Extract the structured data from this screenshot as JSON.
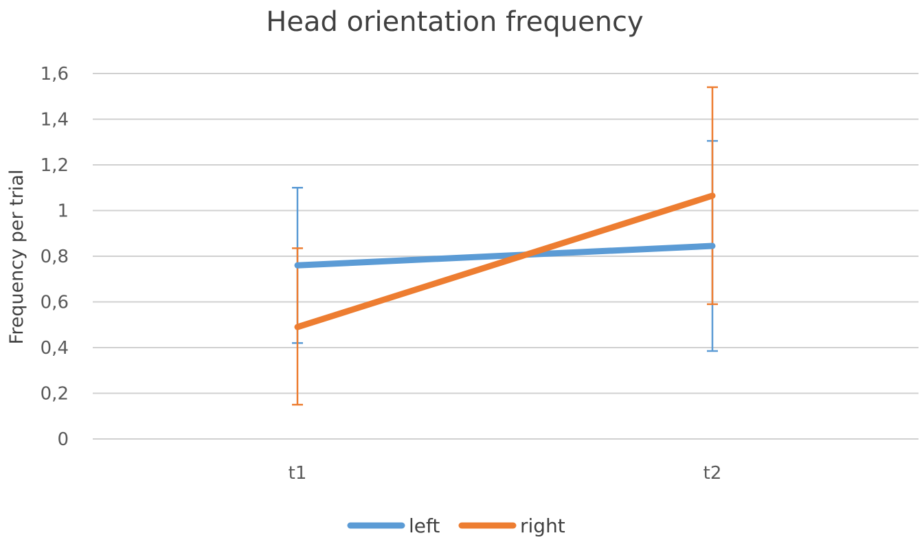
{
  "chart_data": {
    "type": "line",
    "title": "Head orientation frequency",
    "xlabel": "",
    "ylabel": "Frequency per trial",
    "categories": [
      "t1",
      "t2"
    ],
    "ylim": [
      0,
      1.6
    ],
    "yticks": [
      0,
      0.2,
      0.4,
      0.6,
      0.8,
      1,
      1.2,
      1.4,
      1.6
    ],
    "ytick_labels": [
      "0",
      "0,2",
      "0,4",
      "0,6",
      "0,8",
      "1",
      "1,2",
      "1,4",
      "1,6"
    ],
    "grid": true,
    "legend_position": "bottom",
    "series": [
      {
        "name": "left",
        "color": "#5b9bd5",
        "values": [
          0.76,
          0.845
        ],
        "error_low": [
          0.42,
          0.385
        ],
        "error_high": [
          1.1,
          1.305
        ]
      },
      {
        "name": "right",
        "color": "#ed7d31",
        "values": [
          0.49,
          1.065
        ],
        "error_low": [
          0.15,
          0.59
        ],
        "error_high": [
          0.835,
          1.54
        ]
      }
    ]
  }
}
